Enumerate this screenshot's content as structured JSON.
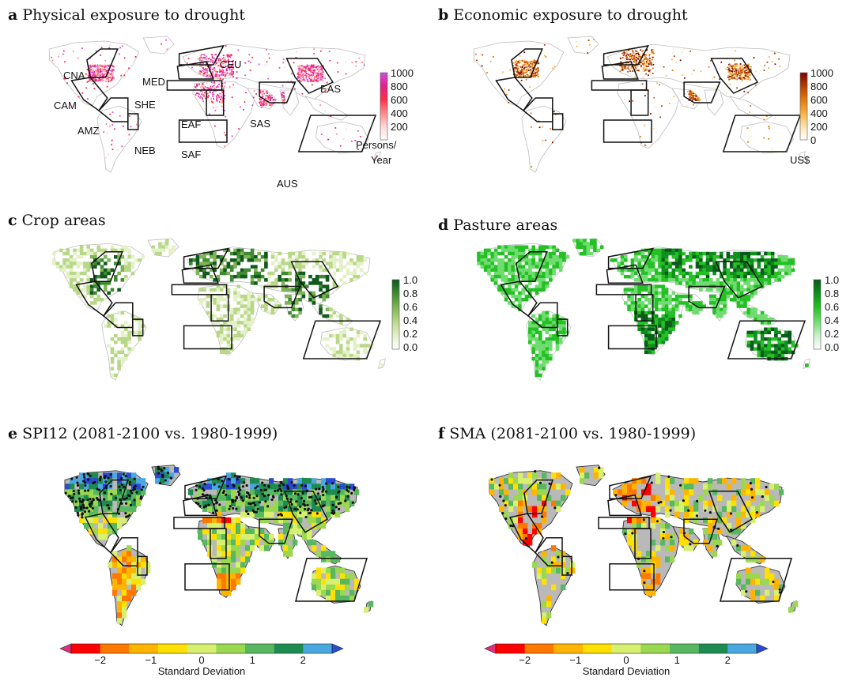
{
  "panels": {
    "a": {
      "letter": "a",
      "title": "Physical exposure to drought"
    },
    "b": {
      "letter": "b",
      "title": "Economic exposure to drought"
    },
    "c": {
      "letter": "c",
      "title": "Crop areas"
    },
    "d": {
      "letter": "d",
      "title": "Pasture areas"
    },
    "e": {
      "letter": "e",
      "title": "SPI12 (2081-2100 vs. 1980-1999)"
    },
    "f": {
      "letter": "f",
      "title": "SMA (2081-2100 vs. 1980-1999)"
    }
  },
  "regions": {
    "CNA": "CNA",
    "CAM": "CAM",
    "AMZ": "AMZ",
    "NEB": "NEB",
    "MED": "MED",
    "CEU": "CEU",
    "SHE": "SHE",
    "EAF": "EAF",
    "SAF": "SAF",
    "SAS": "SAS",
    "EAS": "EAS",
    "AUS": "AUS"
  },
  "legends": {
    "a": {
      "ticks": [
        "1000",
        "800",
        "600",
        "400",
        "200"
      ],
      "unit_line1": "Persons/",
      "unit_line2": "Year",
      "colors": [
        "#ffffff",
        "#ffd6d6",
        "#ff8a8a",
        "#ff2f45",
        "#e0208a",
        "#d24fe0"
      ]
    },
    "b": {
      "ticks": [
        "1000",
        "800",
        "600",
        "400",
        "200",
        "0"
      ],
      "unit": "US$",
      "colors": [
        "#ffffff",
        "#ffe4b0",
        "#f5b040",
        "#e07810",
        "#b53e06",
        "#7a0800"
      ]
    },
    "c": {
      "ticks": [
        "1.0",
        "0.8",
        "0.6",
        "0.4",
        "0.2",
        "0.0"
      ],
      "colors": [
        "#ffffff",
        "#e4f0c8",
        "#b8d888",
        "#7eb456",
        "#3f8a32",
        "#0f5a1c"
      ]
    },
    "d": {
      "ticks": [
        "1.0",
        "0.8",
        "0.6",
        "0.4",
        "0.2",
        "0.0"
      ],
      "colors": [
        "#ffffff",
        "#c8f0c8",
        "#6fdc6f",
        "#25c025",
        "#0f8f1e",
        "#0a5a1a"
      ]
    },
    "sd": {
      "ticks": [
        "−2",
        "−1",
        "0",
        "1",
        "2"
      ],
      "label": "Standard Deviation",
      "colors": [
        "#e0307a",
        "#ff0000",
        "#ff7800",
        "#ffb400",
        "#ffe000",
        "#d8f070",
        "#9ad850",
        "#58b860",
        "#1e8c50",
        "#4aa8e0",
        "#2a4ad0"
      ]
    }
  },
  "colors": {
    "land_outline": "#bdbdbd",
    "ocean": "#ffffff",
    "box": "#111111",
    "no_data_gray": "#b9b9b9"
  }
}
